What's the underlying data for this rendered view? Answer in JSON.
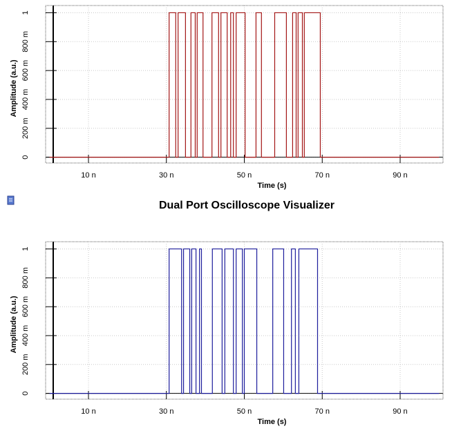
{
  "title": "Dual Port Oscilloscope Visualizer",
  "chart_data": [
    {
      "type": "line",
      "xlabel": "Time (s)",
      "ylabel": "Amplitude (a.u.)",
      "xlim": [
        -1e-09,
        1.01e-07
      ],
      "ylim": [
        -0.04,
        1.05
      ],
      "grid": true,
      "xticks": [
        {
          "value": 1e-08,
          "label": "10 n"
        },
        {
          "value": 3e-08,
          "label": "30 n"
        },
        {
          "value": 5e-08,
          "label": "50 n"
        },
        {
          "value": 7e-08,
          "label": "70 n"
        },
        {
          "value": 9e-08,
          "label": "90 n"
        }
      ],
      "yticks": [
        0,
        {
          "value": 0.2,
          "label": "200 m"
        },
        {
          "value": 0.4,
          "label": "400 m"
        },
        {
          "value": 0.6,
          "label": "600 m"
        },
        {
          "value": 0.8,
          "label": "800 m"
        },
        1
      ],
      "series": [
        {
          "color": "#a31515",
          "x": [
            0,
            3.07e-08,
            3.07e-08,
            3.24e-08,
            3.24e-08,
            3.3e-08,
            3.3e-08,
            3.49e-08,
            3.49e-08,
            3.63e-08,
            3.63e-08,
            3.74e-08,
            3.74e-08,
            3.79e-08,
            3.79e-08,
            3.94e-08,
            3.94e-08,
            4.17e-08,
            4.17e-08,
            4.34e-08,
            4.34e-08,
            4.4e-08,
            4.4e-08,
            4.56e-08,
            4.56e-08,
            4.65e-08,
            4.65e-08,
            4.72e-08,
            4.72e-08,
            4.79e-08,
            4.79e-08,
            5.02e-08,
            5.02e-08,
            5.3e-08,
            5.3e-08,
            5.44e-08,
            5.44e-08,
            5.78e-08,
            5.78e-08,
            6.08e-08,
            6.08e-08,
            6.24e-08,
            6.24e-08,
            6.33e-08,
            6.33e-08,
            6.38e-08,
            6.38e-08,
            6.49e-08,
            6.49e-08,
            6.54e-08,
            6.54e-08,
            6.95e-08,
            6.95e-08,
            1e-07
          ],
          "values": [
            0,
            0,
            1,
            1,
            0,
            0,
            1,
            1,
            0,
            0,
            1,
            1,
            0,
            0,
            1,
            1,
            0,
            0,
            1,
            1,
            0,
            0,
            1,
            1,
            0,
            0,
            1,
            1,
            0,
            0,
            1,
            1,
            0,
            0,
            1,
            1,
            0,
            0,
            1,
            1,
            0,
            0,
            1,
            1,
            0,
            0,
            1,
            1,
            0,
            0,
            1,
            1,
            0,
            0
          ]
        }
      ]
    },
    {
      "type": "line",
      "xlabel": "Time (s)",
      "ylabel": "Amplitude (a.u.)",
      "xlim": [
        -1e-09,
        1.01e-07
      ],
      "ylim": [
        -0.04,
        1.05
      ],
      "grid": true,
      "xticks": [
        {
          "value": 1e-08,
          "label": "10 n"
        },
        {
          "value": 3e-08,
          "label": "30 n"
        },
        {
          "value": 5e-08,
          "label": "50 n"
        },
        {
          "value": 7e-08,
          "label": "70 n"
        },
        {
          "value": 9e-08,
          "label": "90 n"
        }
      ],
      "yticks": [
        0,
        {
          "value": 0.2,
          "label": "200 m"
        },
        {
          "value": 0.4,
          "label": "400 m"
        },
        {
          "value": 0.6,
          "label": "600 m"
        },
        {
          "value": 0.8,
          "label": "800 m"
        },
        1
      ],
      "series": [
        {
          "color": "#1c1c9c",
          "x": [
            0,
            3.07e-08,
            3.07e-08,
            3.39e-08,
            3.39e-08,
            3.44e-08,
            3.44e-08,
            3.6e-08,
            3.6e-08,
            3.65e-08,
            3.65e-08,
            3.76e-08,
            3.76e-08,
            3.85e-08,
            3.85e-08,
            3.9e-08,
            3.9e-08,
            4.18e-08,
            4.18e-08,
            4.43e-08,
            4.43e-08,
            4.5e-08,
            4.5e-08,
            4.72e-08,
            4.72e-08,
            4.79e-08,
            4.79e-08,
            4.95e-08,
            4.95e-08,
            5e-08,
            5e-08,
            5.32e-08,
            5.32e-08,
            5.73e-08,
            5.73e-08,
            6.01e-08,
            6.01e-08,
            6.21e-08,
            6.21e-08,
            6.31e-08,
            6.31e-08,
            6.4e-08,
            6.4e-08,
            6.88e-08,
            6.88e-08,
            1e-07
          ],
          "values": [
            0,
            0,
            1,
            1,
            0,
            0,
            1,
            1,
            0,
            0,
            1,
            1,
            0,
            0,
            1,
            1,
            0,
            0,
            1,
            1,
            0,
            0,
            1,
            1,
            0,
            0,
            1,
            1,
            0,
            0,
            1,
            1,
            0,
            0,
            1,
            1,
            0,
            0,
            1,
            1,
            0,
            0,
            1,
            1,
            0,
            0
          ]
        }
      ]
    }
  ]
}
